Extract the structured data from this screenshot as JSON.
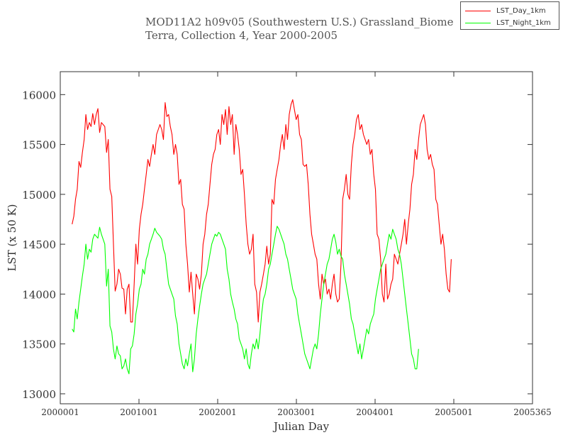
{
  "chart_data": {
    "type": "line",
    "title": "MOD11A2 h09v05 (Southwestern U.S.) Grassland_Biome",
    "subtitle": "Terra, Collection 4, Year 2000-2005",
    "xlabel": "Julian Day",
    "ylabel": "LST (x 50 K)",
    "xlim": [
      0,
      6.0
    ],
    "ylim": [
      12900,
      16230
    ],
    "x_ticks": [
      0,
      1,
      2,
      3,
      4,
      5,
      6
    ],
    "x_tick_labels": [
      "2000001",
      "2001001",
      "2002001",
      "2003001",
      "2004001",
      "2005001",
      "2005365"
    ],
    "y_ticks": [
      13000,
      13500,
      14000,
      14500,
      15000,
      15500,
      16000
    ],
    "y_tick_labels": [
      "13000",
      "13500",
      "14000",
      "14500",
      "15000",
      "15500",
      "16000"
    ],
    "grid": false,
    "legend": "top-right",
    "series": [
      {
        "name": "LST_Day_1km",
        "color": "#ff0000",
        "x_start": 0.15,
        "x_step": 0.0219,
        "y": [
          14700,
          14780,
          14950,
          15050,
          15330,
          15270,
          15420,
          15550,
          15800,
          15650,
          15720,
          15680,
          15810,
          15700,
          15800,
          15860,
          15620,
          15720,
          15700,
          15680,
          15420,
          15550,
          15050,
          14980,
          14500,
          14030,
          14100,
          14250,
          14200,
          14060,
          14050,
          13800,
          14050,
          14100,
          13720,
          13720,
          14100,
          14500,
          14300,
          14650,
          14800,
          14900,
          15050,
          15200,
          15350,
          15280,
          15400,
          15500,
          15400,
          15600,
          15650,
          15700,
          15650,
          15550,
          15920,
          15780,
          15800,
          15680,
          15600,
          15400,
          15500,
          15400,
          15100,
          15150,
          14900,
          14850,
          14500,
          14300,
          14020,
          14220,
          14000,
          13800,
          14200,
          14150,
          14050,
          14200,
          14500,
          14600,
          14800,
          14900,
          15100,
          15300,
          15400,
          15450,
          15600,
          15650,
          15500,
          15800,
          15700,
          15850,
          15600,
          15880,
          15700,
          15800,
          15400,
          15700,
          15600,
          15450,
          15200,
          15250,
          15000,
          14700,
          14500,
          14400,
          14450,
          14600,
          14100,
          14020,
          13720,
          14020,
          14100,
          14200,
          14300,
          14480,
          14300,
          14400,
          14950,
          14900,
          15150,
          15250,
          15350,
          15500,
          15600,
          15450,
          15700,
          15550,
          15800,
          15900,
          15950,
          15850,
          15750,
          15800,
          15600,
          15550,
          15300,
          15280,
          15300,
          15100,
          14800,
          14600,
          14500,
          14400,
          14350,
          14100,
          13950,
          14200,
          14100,
          14150,
          14000,
          14050,
          13950,
          14100,
          14200,
          14000,
          13920,
          13950,
          14300,
          14950,
          15050,
          15200,
          15000,
          14950,
          15300,
          15500,
          15600,
          15750,
          15800,
          15650,
          15700,
          15600,
          15550,
          15500,
          15550,
          15400,
          15450,
          15200,
          15050,
          14600,
          14550,
          14350,
          14000,
          13920,
          14300,
          13950,
          14000,
          14100,
          14150,
          14400,
          14350,
          14300,
          14400,
          14500,
          14600,
          14750,
          14500,
          14700,
          14850,
          15100,
          15200,
          15450,
          15350,
          15550,
          15700,
          15750,
          15800,
          15700,
          15450,
          15350,
          15400,
          15300,
          15250,
          14950,
          14900,
          14700,
          14500,
          14600,
          14450,
          14200,
          14050,
          14020,
          14350
        ]
      },
      {
        "name": "LST_Night_1km",
        "color": "#00ff00",
        "x_start": 0.15,
        "x_step": 0.0219,
        "y": [
          13650,
          13620,
          13850,
          13750,
          13920,
          14050,
          14180,
          14300,
          14500,
          14350,
          14450,
          14420,
          14550,
          14600,
          14580,
          14560,
          14670,
          14600,
          14550,
          14500,
          14080,
          14250,
          13680,
          13620,
          13450,
          13350,
          13480,
          13400,
          13380,
          13250,
          13280,
          13350,
          13250,
          13200,
          13450,
          13480,
          13600,
          13800,
          13900,
          14050,
          14100,
          14250,
          14200,
          14350,
          14400,
          14500,
          14550,
          14600,
          14660,
          14620,
          14600,
          14580,
          14550,
          14450,
          14400,
          14250,
          14100,
          14050,
          14000,
          13950,
          13780,
          13700,
          13500,
          13400,
          13300,
          13250,
          13350,
          13280,
          13400,
          13500,
          13220,
          13350,
          13600,
          13750,
          13880,
          14000,
          14100,
          14150,
          14200,
          14300,
          14400,
          14500,
          14550,
          14600,
          14580,
          14620,
          14600,
          14550,
          14500,
          14450,
          14250,
          14150,
          14000,
          13920,
          13850,
          13750,
          13700,
          13550,
          13500,
          13450,
          13350,
          13450,
          13300,
          13250,
          13400,
          13500,
          13450,
          13550,
          13450,
          13600,
          13800,
          13950,
          14000,
          14100,
          14250,
          14300,
          14400,
          14500,
          14600,
          14680,
          14650,
          14600,
          14550,
          14500,
          14400,
          14350,
          14250,
          14150,
          14050,
          14000,
          13950,
          13800,
          13700,
          13600,
          13500,
          13400,
          13350,
          13300,
          13250,
          13350,
          13450,
          13500,
          13450,
          13600,
          13800,
          13950,
          14100,
          14200,
          14300,
          14350,
          14450,
          14550,
          14600,
          14520,
          14400,
          14450,
          14380,
          14350,
          14200,
          14100,
          14000,
          13900,
          13750,
          13700,
          13600,
          13500,
          13400,
          13500,
          13350,
          13450,
          13550,
          13650,
          13600,
          13700,
          13750,
          13800,
          13950,
          14050,
          14150,
          14250,
          14300,
          14350,
          14400,
          14500,
          14600,
          14550,
          14650,
          14600,
          14550,
          14450,
          14400,
          14300,
          14150,
          14000,
          13850,
          13700,
          13550,
          13400,
          13350,
          13250,
          13250,
          13450
        ]
      }
    ]
  }
}
